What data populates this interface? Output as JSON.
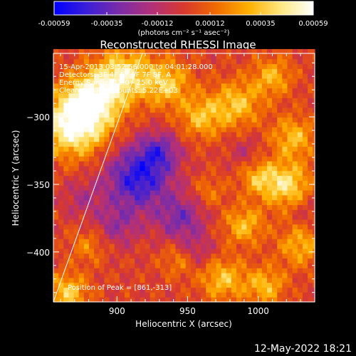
{
  "chart_data": {
    "type": "heatmap",
    "title": "Reconstructed RHESSI Image",
    "xlabel": "Heliocentric X (arcsec)",
    "ylabel": "Heliocentric Y (arcsec)",
    "xlim": [
      855,
      1040
    ],
    "ylim": [
      -437,
      -253
    ],
    "xticks": [
      900,
      950,
      1000
    ],
    "yticks": [
      -300,
      -350,
      -400
    ],
    "colorbar": {
      "min": -0.00059,
      "max": 0.00059,
      "ticks": [
        "-0.00059",
        "-0.00035",
        "-0.00012",
        "0.00012",
        "0.00035",
        "0.00059"
      ],
      "unit_label": "(photons cm⁻² s⁻¹ asec⁻²)",
      "colormap_stops": [
        "#0000ff",
        "#3a1fd8",
        "#7a2ca8",
        "#b2307a",
        "#d8382e",
        "#f06a00",
        "#ffb000",
        "#ffe880",
        "#ffffff"
      ]
    },
    "annotations": {
      "time_range": "15-Apr-2013 03:52:56.000 to 04:01:28.000",
      "detectors": "Detectors: 3F 4F 5F 6F 7F 8F, A",
      "energy_range": "Energy Range: 12.0 - 25.0 keV",
      "clean": "Clean       Total counts: 5.22E+03",
      "peak_position": "Position of Peak = [861,-313]"
    },
    "limb_line": {
      "x": [
        855,
        918
      ],
      "y": [
        -437,
        -253
      ]
    },
    "grid": false
  },
  "footer": {
    "date": "12-May-2022 18:21"
  },
  "colors": {
    "background": "#000000",
    "text": "#ffffff"
  }
}
